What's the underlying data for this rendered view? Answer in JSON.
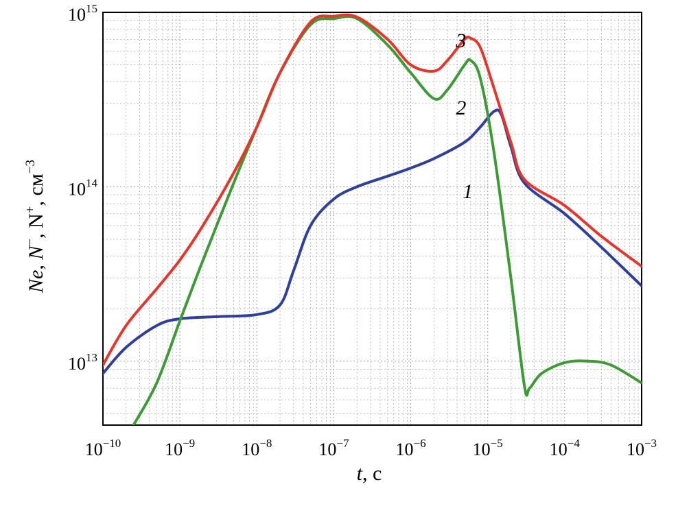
{
  "chart_data": {
    "type": "line",
    "x_scale": "log",
    "y_scale": "log",
    "xlim": [
      1e-10,
      0.001
    ],
    "ylim": [
      4300000000000.0,
      1000000000000000.0
    ],
    "grid": true,
    "x_ticks": [
      {
        "value": 1e-10,
        "base": "10",
        "exp": "−10"
      },
      {
        "value": 1e-09,
        "base": "10",
        "exp": "−9"
      },
      {
        "value": 1e-08,
        "base": "10",
        "exp": "−8"
      },
      {
        "value": 1e-07,
        "base": "10",
        "exp": "−7"
      },
      {
        "value": 1e-06,
        "base": "10",
        "exp": "−6"
      },
      {
        "value": 1e-05,
        "base": "10",
        "exp": "−5"
      },
      {
        "value": 0.0001,
        "base": "10",
        "exp": "−4"
      },
      {
        "value": 0.001,
        "base": "10",
        "exp": "−3"
      }
    ],
    "y_ticks": [
      {
        "value": 10000000000000.0,
        "base": "10",
        "exp": "13"
      },
      {
        "value": 100000000000000.0,
        "base": "10",
        "exp": "14"
      },
      {
        "value": 1000000000000000.0,
        "base": "10",
        "exp": "15"
      }
    ],
    "xlabel": {
      "var": "t",
      "rest": ", с"
    },
    "ylabel": {
      "p1": "Ne, N",
      "s1": "−",
      "p2": ", N",
      "s2": "+",
      "p3": ", см",
      "s3": "−3"
    },
    "series": [
      {
        "label": "1",
        "color": "#2f3f9e",
        "x": [
          1e-10,
          2e-10,
          5e-10,
          1e-09,
          3e-09,
          1e-08,
          2e-08,
          3e-08,
          5e-08,
          1e-07,
          2e-07,
          5e-07,
          1e-06,
          2e-06,
          5e-06,
          8e-06,
          1.2e-05,
          1.5e-05,
          2e-05,
          3e-05,
          0.0001,
          0.0003,
          0.001
        ],
        "y": [
          8500000000000.0,
          12000000000000.0,
          16000000000000.0,
          17500000000000.0,
          18000000000000.0,
          18500000000000.0,
          21000000000000.0,
          33000000000000.0,
          60000000000000.0,
          85000000000000.0,
          100000000000000.0,
          115000000000000.0,
          128000000000000.0,
          145000000000000.0,
          180000000000000.0,
          220000000000000.0,
          270000000000000.0,
          260000000000000.0,
          170000000000000.0,
          105000000000000.0,
          70000000000000.0,
          45000000000000.0,
          27000000000000.0
        ]
      },
      {
        "label": "2",
        "color": "#3d9b35",
        "x": [
          2.5e-10,
          5e-10,
          1e-09,
          2e-09,
          5e-09,
          1e-08,
          2e-08,
          5e-08,
          1e-07,
          2e-07,
          5e-07,
          1e-06,
          2e-06,
          3e-06,
          5e-06,
          6e-06,
          8e-06,
          1.2e-05,
          2e-05,
          3e-05,
          3.5e-05,
          5e-05,
          0.0001,
          0.0002,
          0.0004,
          0.001
        ],
        "y": [
          4300000000000.0,
          7500000000000.0,
          17000000000000.0,
          38000000000000.0,
          105000000000000.0,
          220000000000000.0,
          450000000000000.0,
          850000000000000.0,
          920000000000000.0,
          920000000000000.0,
          650000000000000.0,
          450000000000000.0,
          320000000000000.0,
          360000000000000.0,
          500000000000000.0,
          530000000000000.0,
          420000000000000.0,
          160000000000000.0,
          30000000000000.0,
          7200000000000.0,
          7000000000000.0,
          8500000000000.0,
          9800000000000.0,
          10000000000000.0,
          9500000000000.0,
          7500000000000.0
        ]
      },
      {
        "label": "3",
        "color": "#e8352b",
        "x": [
          1e-10,
          2e-10,
          5e-10,
          1e-09,
          2e-09,
          5e-09,
          1e-08,
          2e-08,
          5e-08,
          1e-07,
          2e-07,
          5e-07,
          1e-06,
          2e-06,
          3e-06,
          5e-06,
          6e-06,
          8e-06,
          1.2e-05,
          2e-05,
          3e-05,
          0.0001,
          0.0003,
          0.001
        ],
        "y": [
          9500000000000.0,
          16000000000000.0,
          26000000000000.0,
          38000000000000.0,
          60000000000000.0,
          120000000000000.0,
          220000000000000.0,
          450000000000000.0,
          880000000000000.0,
          950000000000000.0,
          940000000000000.0,
          700000000000000.0,
          500000000000000.0,
          460000000000000.0,
          530000000000000.0,
          700000000000000.0,
          710000000000000.0,
          630000000000000.0,
          370000000000000.0,
          180000000000000.0,
          110000000000000.0,
          78000000000000.0,
          52000000000000.0,
          35000000000000.0
        ]
      }
    ],
    "annotations": [
      {
        "text": "3",
        "x": 4.5e-06,
        "y": 630000000000000.0
      },
      {
        "text": "2",
        "x": 4.5e-06,
        "y": 260000000000000.0
      },
      {
        "text": "1",
        "x": 5.5e-06,
        "y": 86000000000000.0
      }
    ]
  }
}
